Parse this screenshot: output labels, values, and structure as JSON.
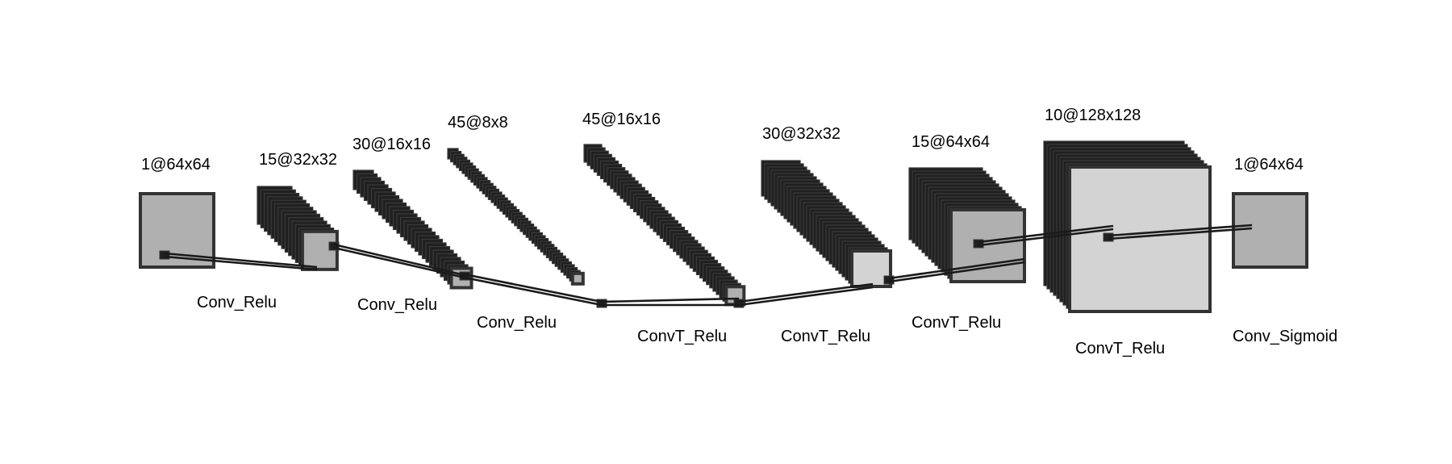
{
  "layers": [
    {
      "shape": "1@64x64",
      "fill": "#b0b0b0"
    },
    {
      "shape": "15@32x32",
      "fill": "#b0b0b0"
    },
    {
      "shape": "30@16x16",
      "fill": "#b0b0b0"
    },
    {
      "shape": "45@8x8",
      "fill": "#b0b0b0"
    },
    {
      "shape": "45@16x16",
      "fill": "#b0b0b0"
    },
    {
      "shape": "30@32x32",
      "fill": "#d3d3d3"
    },
    {
      "shape": "15@64x64",
      "fill": "#b0b0b0"
    },
    {
      "shape": "10@128x128",
      "fill": "#d3d3d3"
    },
    {
      "shape": "1@64x64",
      "fill": "#b0b0b0"
    }
  ],
  "operations": [
    "Conv_Relu",
    "Conv_Relu",
    "Conv_Relu",
    "ConvT_Relu",
    "ConvT_Relu",
    "ConvT_Relu",
    "ConvT_Relu",
    "Conv_Sigmoid"
  ],
  "colors": {
    "stack_fill": "#202020",
    "stack_edge": "#3a3a3a",
    "map_edge": "#333333",
    "connector": "#1a1a1a"
  }
}
